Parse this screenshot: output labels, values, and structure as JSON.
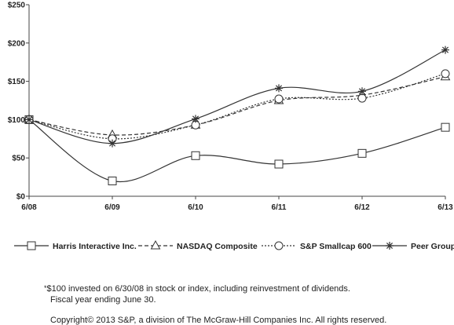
{
  "chart_data": {
    "type": "line",
    "title": "",
    "xlabel": "",
    "ylabel": "",
    "categories": [
      "6/08",
      "6/09",
      "6/10",
      "6/11",
      "6/12",
      "6/13"
    ],
    "ylim": [
      0,
      250
    ],
    "yticks": [
      0,
      50,
      100,
      150,
      200,
      250
    ],
    "ytick_labels": [
      "$0",
      "$50",
      "$100",
      "$150",
      "$200",
      "$250"
    ],
    "grid": false,
    "legend_position": "bottom",
    "series": [
      {
        "name": "Harris Interactive Inc.",
        "marker": "square",
        "dash": "solid",
        "color": "#333333",
        "values": [
          100,
          20,
          53,
          42,
          56,
          90
        ]
      },
      {
        "name": "NASDAQ Composite",
        "marker": "triangle",
        "dash": "dashed",
        "color": "#333333",
        "values": [
          100,
          80,
          93,
          125,
          132,
          156
        ]
      },
      {
        "name": "S&P Smallcap 600",
        "marker": "circle",
        "dash": "dotted",
        "color": "#333333",
        "values": [
          100,
          75,
          93,
          127,
          128,
          160
        ]
      },
      {
        "name": "Peer Group",
        "marker": "star",
        "dash": "solid",
        "color": "#333333",
        "values": [
          100,
          69,
          101,
          141,
          137,
          191
        ]
      }
    ]
  },
  "footnote": {
    "mark": "*",
    "line1": "$100 invested on 6/30/08 in stock or index, including reinvestment of dividends.",
    "line2": "Fiscal year ending June 30."
  },
  "copyright": "Copyright© 2013 S&P, a division of The McGraw-Hill Companies Inc. All rights reserved."
}
